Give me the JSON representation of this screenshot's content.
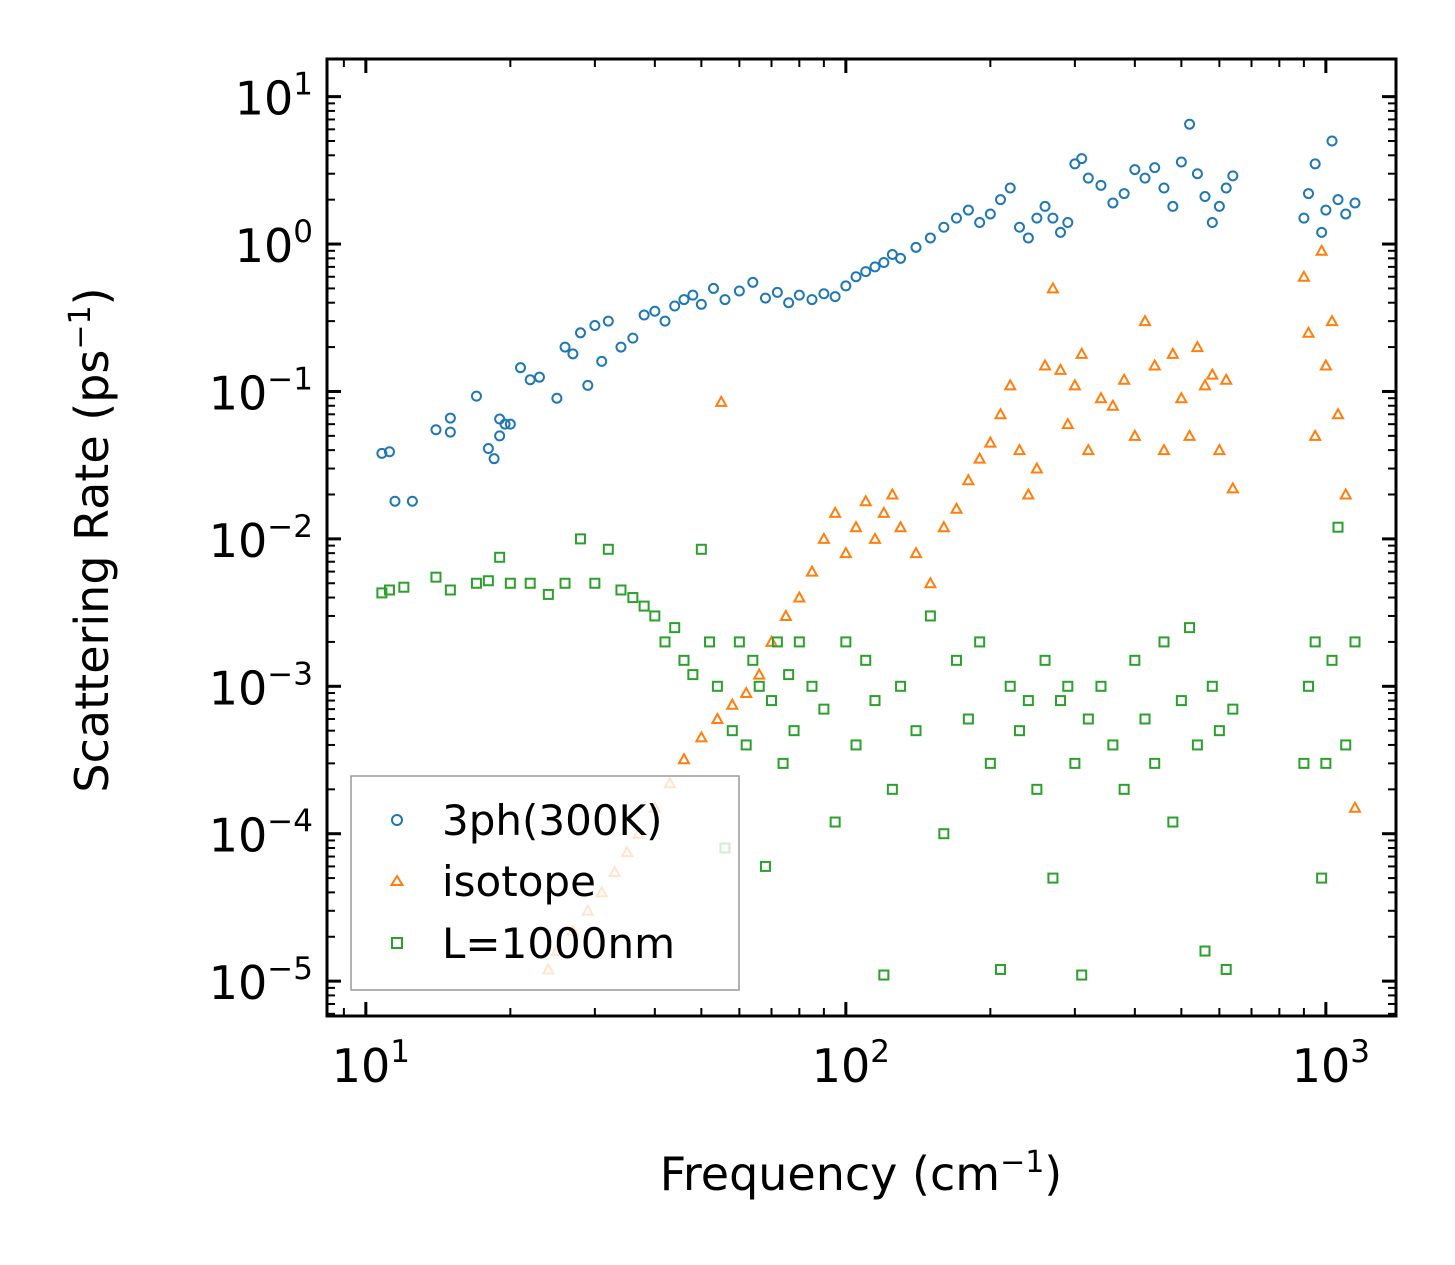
{
  "chart_data": {
    "type": "scatter",
    "xscale": "log",
    "yscale": "log",
    "xlim": [
      8.3,
      1400
    ],
    "ylim": [
      5.8e-06,
      18
    ],
    "xlabel": "Frequency (cm",
    "xlabel_sup": "−1",
    "xlabel_end": ")",
    "ylabel": "Scattering Rate (ps",
    "ylabel_sup": "−1",
    "ylabel_end": ")",
    "x_ticks": [
      {
        "value": 10,
        "base": "10",
        "exp": "1"
      },
      {
        "value": 100,
        "base": "10",
        "exp": "2"
      },
      {
        "value": 1000,
        "base": "10",
        "exp": "3"
      }
    ],
    "y_ticks": [
      {
        "value": 10,
        "base": "10",
        "exp": "1"
      },
      {
        "value": 1,
        "base": "10",
        "exp": "0"
      },
      {
        "value": 0.1,
        "base": "10",
        "exp": "−1"
      },
      {
        "value": 0.01,
        "base": "10",
        "exp": "−2"
      },
      {
        "value": 0.001,
        "base": "10",
        "exp": "−3"
      },
      {
        "value": 0.0001,
        "base": "10",
        "exp": "−4"
      },
      {
        "value": 1e-05,
        "base": "10",
        "exp": "−5"
      }
    ],
    "legend_position": "lower-left",
    "series": [
      {
        "name": "3ph(300K)",
        "marker": "circle",
        "color": "#1f77b4",
        "x": [
          10.8,
          11.2,
          11.5,
          12.5,
          14,
          15,
          15,
          17,
          18,
          18.5,
          19,
          19,
          19.5,
          20,
          21,
          22,
          23,
          25,
          26,
          27,
          28,
          29,
          30,
          31,
          32,
          34,
          36,
          38,
          40,
          42,
          44,
          46,
          48,
          50,
          53,
          56,
          60,
          64,
          68,
          72,
          76,
          80,
          85,
          90,
          95,
          100,
          105,
          110,
          115,
          120,
          125,
          130,
          140,
          150,
          160,
          170,
          180,
          190,
          200,
          210,
          220,
          230,
          240,
          250,
          260,
          270,
          280,
          290,
          300,
          310,
          320,
          340,
          360,
          380,
          400,
          420,
          440,
          460,
          480,
          500,
          520,
          540,
          560,
          580,
          600,
          620,
          640,
          900,
          920,
          950,
          980,
          1000,
          1030,
          1060,
          1100,
          1150
        ],
        "y": [
          0.038,
          0.039,
          0.018,
          0.018,
          0.055,
          0.066,
          0.053,
          0.093,
          0.041,
          0.035,
          0.065,
          0.05,
          0.06,
          0.06,
          0.145,
          0.12,
          0.125,
          0.09,
          0.2,
          0.18,
          0.25,
          0.11,
          0.28,
          0.16,
          0.3,
          0.2,
          0.23,
          0.33,
          0.35,
          0.3,
          0.38,
          0.42,
          0.45,
          0.39,
          0.5,
          0.42,
          0.48,
          0.55,
          0.43,
          0.47,
          0.4,
          0.45,
          0.42,
          0.46,
          0.44,
          0.52,
          0.6,
          0.65,
          0.7,
          0.75,
          0.85,
          0.8,
          0.95,
          1.1,
          1.3,
          1.5,
          1.7,
          1.4,
          1.6,
          2.0,
          2.4,
          1.3,
          1.1,
          1.5,
          1.8,
          1.5,
          1.2,
          1.4,
          3.5,
          3.8,
          2.8,
          2.5,
          1.9,
          2.2,
          3.2,
          2.8,
          3.3,
          2.4,
          1.8,
          3.6,
          6.5,
          3.0,
          2.1,
          1.4,
          1.8,
          2.4,
          2.9,
          1.5,
          2.2,
          3.5,
          1.2,
          1.7,
          5.0,
          2.0,
          1.6,
          1.9
        ]
      },
      {
        "name": "isotope",
        "marker": "triangle",
        "color": "#ff7f0e",
        "x": [
          24,
          25,
          27,
          29,
          31,
          33,
          35,
          37,
          40,
          43,
          46,
          50,
          54,
          55,
          58,
          62,
          66,
          70,
          75,
          80,
          85,
          90,
          95,
          100,
          105,
          110,
          115,
          120,
          125,
          130,
          140,
          150,
          160,
          170,
          180,
          190,
          200,
          210,
          220,
          230,
          240,
          250,
          260,
          270,
          280,
          290,
          300,
          310,
          320,
          340,
          360,
          380,
          400,
          420,
          440,
          460,
          480,
          500,
          520,
          540,
          560,
          580,
          600,
          620,
          640,
          900,
          920,
          950,
          980,
          1000,
          1030,
          1060,
          1100,
          1150
        ],
        "y": [
          1.2e-05,
          1.6e-05,
          2.2e-05,
          3e-05,
          4e-05,
          5.5e-05,
          7.5e-05,
          0.0001,
          0.00015,
          0.00022,
          0.00032,
          0.00045,
          0.0006,
          0.085,
          0.00075,
          0.0009,
          0.0012,
          0.002,
          0.003,
          0.004,
          0.006,
          0.01,
          0.015,
          0.008,
          0.012,
          0.018,
          0.01,
          0.015,
          0.02,
          0.012,
          0.008,
          0.005,
          0.012,
          0.016,
          0.025,
          0.035,
          0.045,
          0.07,
          0.11,
          0.04,
          0.02,
          0.03,
          0.15,
          0.5,
          0.14,
          0.06,
          0.11,
          0.18,
          0.04,
          0.09,
          0.08,
          0.12,
          0.05,
          0.3,
          0.15,
          0.04,
          0.18,
          0.09,
          0.05,
          0.2,
          0.11,
          0.13,
          0.04,
          0.12,
          0.022,
          0.6,
          0.25,
          0.05,
          0.9,
          0.15,
          0.3,
          0.07,
          0.02,
          0.00015
        ]
      },
      {
        "name": "L=1000nm",
        "marker": "square",
        "color": "#2ca02c",
        "x": [
          10.8,
          11.2,
          12,
          14,
          15,
          17,
          18,
          19,
          20,
          22,
          24,
          26,
          28,
          30,
          32,
          34,
          36,
          38,
          40,
          42,
          44,
          46,
          48,
          50,
          52,
          54,
          56,
          58,
          60,
          62,
          64,
          66,
          68,
          70,
          72,
          74,
          76,
          78,
          80,
          85,
          90,
          95,
          100,
          105,
          110,
          115,
          120,
          125,
          130,
          140,
          150,
          160,
          170,
          180,
          190,
          200,
          210,
          220,
          230,
          240,
          250,
          260,
          270,
          280,
          290,
          300,
          310,
          320,
          340,
          360,
          380,
          400,
          420,
          440,
          460,
          480,
          500,
          520,
          540,
          560,
          580,
          600,
          620,
          640,
          900,
          920,
          950,
          980,
          1000,
          1030,
          1060,
          1100,
          1150
        ],
        "y": [
          0.0043,
          0.0045,
          0.0047,
          0.0055,
          0.0045,
          0.005,
          0.0052,
          0.0075,
          0.005,
          0.005,
          0.0042,
          0.005,
          0.01,
          0.005,
          0.0085,
          0.0045,
          0.004,
          0.0035,
          0.003,
          0.002,
          0.0025,
          0.0015,
          0.0012,
          0.0085,
          0.002,
          0.001,
          8e-05,
          0.0005,
          0.002,
          0.0004,
          0.0015,
          0.001,
          6e-05,
          0.0008,
          0.002,
          0.0003,
          0.0012,
          0.0005,
          0.002,
          0.001,
          0.0007,
          0.00012,
          0.002,
          0.0004,
          0.0015,
          0.0008,
          1.1e-05,
          0.0002,
          0.001,
          0.0005,
          0.003,
          0.0001,
          0.0015,
          0.0006,
          0.002,
          0.0003,
          1.2e-05,
          0.001,
          0.0005,
          0.0008,
          0.0002,
          0.0015,
          5e-05,
          0.0008,
          0.001,
          0.0003,
          1.1e-05,
          0.0006,
          0.001,
          0.0004,
          0.0002,
          0.0015,
          0.0006,
          0.0003,
          0.002,
          0.00012,
          0.0008,
          0.0025,
          0.0004,
          1.6e-05,
          0.001,
          0.0005,
          1.2e-05,
          0.0007,
          0.0003,
          0.001,
          0.002,
          5e-05,
          0.0003,
          0.0015,
          0.012,
          0.0004,
          0.002
        ]
      }
    ]
  }
}
